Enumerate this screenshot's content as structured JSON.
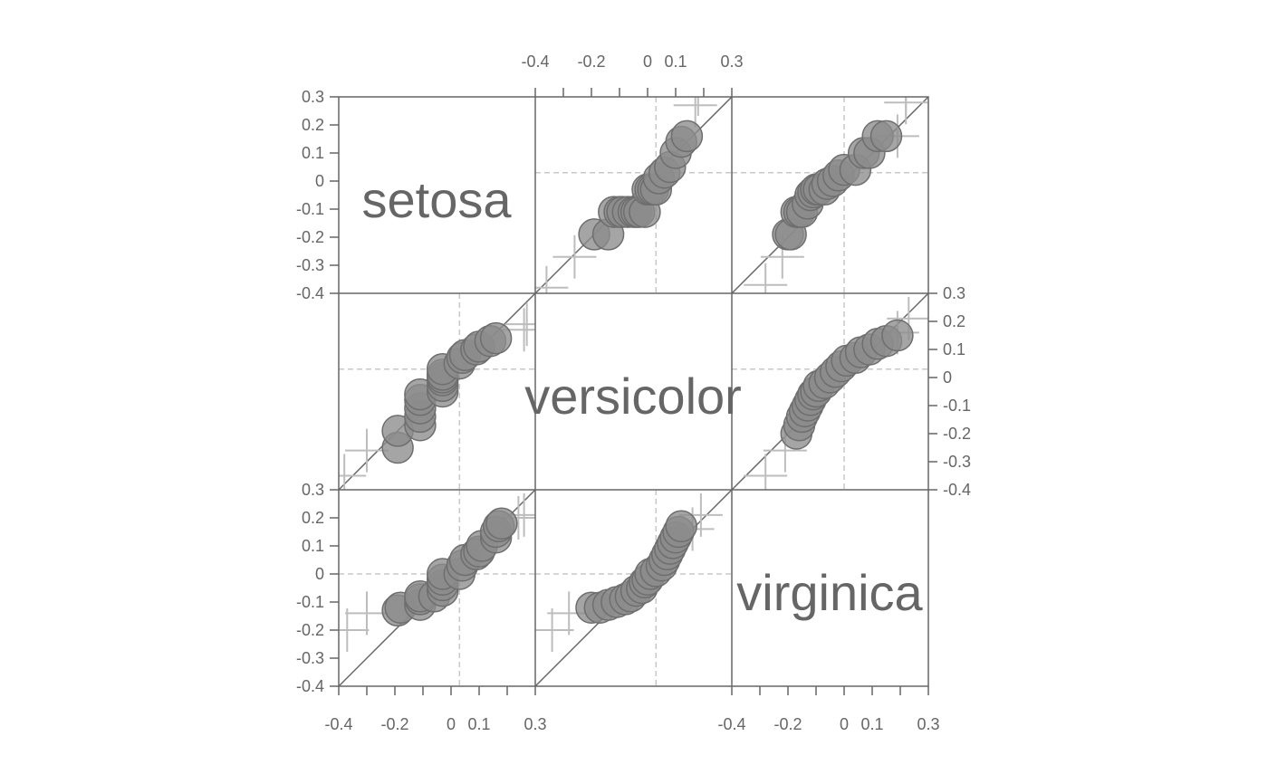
{
  "chart_data": {
    "type": "scatter",
    "subtype": "scatterplot-matrix-qq",
    "groups": [
      "setosa",
      "versicolor",
      "virginica"
    ],
    "axis": {
      "range": [
        -0.4,
        0.3
      ],
      "ticks": [
        -0.4,
        -0.3,
        -0.2,
        -0.1,
        0,
        0.1,
        0.2,
        0.3
      ],
      "tick_labels_vertical": [
        "0.3",
        "0.2",
        "0.1",
        "0",
        "-0.1",
        "-0.2",
        "-0.3",
        "-0.4"
      ],
      "tick_labels_horizontal": [
        {
          "value": -0.4,
          "text": "-0.4"
        },
        {
          "value": -0.2,
          "text": "-0.2"
        },
        {
          "value": 0,
          "text": "0"
        },
        {
          "value": 0.1,
          "text": "0.1"
        },
        {
          "value": 0.3,
          "text": "0.3"
        }
      ]
    },
    "reference_lines": {
      "identity": true,
      "dashed_vertical_by_column": [
        0.03,
        0.03,
        0.0
      ],
      "dashed_horizontal_by_row": [
        0.03,
        0.03,
        0.0
      ]
    },
    "panels": [
      {
        "row": 0,
        "col": 1,
        "points": [
          [
            -0.19,
            -0.19
          ],
          [
            -0.14,
            -0.19
          ],
          [
            -0.12,
            -0.11
          ],
          [
            -0.1,
            -0.11
          ],
          [
            -0.09,
            -0.11
          ],
          [
            -0.07,
            -0.11
          ],
          [
            -0.05,
            -0.11
          ],
          [
            -0.04,
            -0.11
          ],
          [
            -0.03,
            -0.11
          ],
          [
            -0.01,
            -0.11
          ],
          [
            0.0,
            -0.03
          ],
          [
            0.01,
            -0.03
          ],
          [
            0.02,
            -0.03
          ],
          [
            0.03,
            -0.03
          ],
          [
            0.04,
            0.01
          ],
          [
            0.06,
            0.03
          ],
          [
            0.08,
            0.05
          ],
          [
            0.1,
            0.1
          ],
          [
            0.12,
            0.14
          ],
          [
            0.14,
            0.16
          ]
        ],
        "crosses": [
          [
            -0.36,
            -0.38
          ],
          [
            -0.26,
            -0.27
          ],
          [
            0.17,
            0.27
          ],
          [
            0.18,
            0.31
          ]
        ]
      },
      {
        "row": 0,
        "col": 2,
        "points": [
          [
            -0.2,
            -0.19
          ],
          [
            -0.19,
            -0.19
          ],
          [
            -0.17,
            -0.11
          ],
          [
            -0.16,
            -0.11
          ],
          [
            -0.15,
            -0.11
          ],
          [
            -0.13,
            -0.08
          ],
          [
            -0.12,
            -0.05
          ],
          [
            -0.11,
            -0.04
          ],
          [
            -0.1,
            -0.03
          ],
          [
            -0.09,
            -0.03
          ],
          [
            -0.07,
            -0.03
          ],
          [
            -0.06,
            -0.01
          ],
          [
            -0.04,
            0.0
          ],
          [
            -0.02,
            0.02
          ],
          [
            0.0,
            0.04
          ],
          [
            0.04,
            0.04
          ],
          [
            0.07,
            0.1
          ],
          [
            0.09,
            0.1
          ],
          [
            0.12,
            0.16
          ],
          [
            0.15,
            0.16
          ]
        ],
        "crosses": [
          [
            -0.28,
            -0.37
          ],
          [
            -0.22,
            -0.27
          ],
          [
            0.19,
            0.16
          ],
          [
            0.22,
            0.28
          ],
          [
            0.22,
            0.31
          ]
        ]
      },
      {
        "row": 1,
        "col": 0,
        "points": [
          [
            -0.19,
            -0.25
          ],
          [
            -0.19,
            -0.19
          ],
          [
            -0.11,
            -0.17
          ],
          [
            -0.11,
            -0.14
          ],
          [
            -0.11,
            -0.11
          ],
          [
            -0.11,
            -0.08
          ],
          [
            -0.11,
            -0.06
          ],
          [
            -0.03,
            -0.05
          ],
          [
            -0.03,
            -0.03
          ],
          [
            -0.03,
            -0.01
          ],
          [
            -0.03,
            0.0
          ],
          [
            -0.03,
            0.01
          ],
          [
            -0.03,
            0.03
          ],
          [
            0.03,
            0.05
          ],
          [
            0.04,
            0.07
          ],
          [
            0.05,
            0.08
          ],
          [
            0.09,
            0.1
          ],
          [
            0.1,
            0.11
          ],
          [
            0.14,
            0.13
          ],
          [
            0.16,
            0.14
          ]
        ],
        "crosses": [
          [
            -0.38,
            -0.35
          ],
          [
            -0.3,
            -0.26
          ],
          [
            0.26,
            0.17
          ],
          [
            0.27,
            0.19
          ]
        ]
      },
      {
        "row": 1,
        "col": 2,
        "points": [
          [
            -0.17,
            -0.2
          ],
          [
            -0.16,
            -0.17
          ],
          [
            -0.15,
            -0.14
          ],
          [
            -0.14,
            -0.12
          ],
          [
            -0.13,
            -0.1
          ],
          [
            -0.12,
            -0.08
          ],
          [
            -0.11,
            -0.06
          ],
          [
            -0.1,
            -0.05
          ],
          [
            -0.09,
            -0.03
          ],
          [
            -0.07,
            -0.02
          ],
          [
            -0.05,
            0.0
          ],
          [
            -0.03,
            0.02
          ],
          [
            -0.01,
            0.04
          ],
          [
            0.01,
            0.06
          ],
          [
            0.04,
            0.07
          ],
          [
            0.06,
            0.09
          ],
          [
            0.09,
            0.1
          ],
          [
            0.12,
            0.12
          ],
          [
            0.15,
            0.13
          ],
          [
            0.19,
            0.15
          ]
        ],
        "crosses": [
          [
            -0.28,
            -0.35
          ],
          [
            -0.21,
            -0.26
          ],
          [
            0.19,
            0.16
          ],
          [
            0.23,
            0.21
          ]
        ]
      },
      {
        "row": 2,
        "col": 0,
        "points": [
          [
            -0.19,
            -0.13
          ],
          [
            -0.18,
            -0.12
          ],
          [
            -0.11,
            -0.11
          ],
          [
            -0.11,
            -0.09
          ],
          [
            -0.11,
            -0.08
          ],
          [
            -0.06,
            -0.08
          ],
          [
            -0.03,
            -0.06
          ],
          [
            -0.03,
            -0.04
          ],
          [
            -0.03,
            -0.02
          ],
          [
            -0.03,
            0.0
          ],
          [
            0.03,
            0.0
          ],
          [
            0.04,
            0.03
          ],
          [
            0.05,
            0.05
          ],
          [
            0.09,
            0.07
          ],
          [
            0.1,
            0.08
          ],
          [
            0.11,
            0.1
          ],
          [
            0.16,
            0.13
          ],
          [
            0.16,
            0.15
          ],
          [
            0.17,
            0.17
          ],
          [
            0.18,
            0.18
          ]
        ],
        "crosses": [
          [
            -0.37,
            -0.2
          ],
          [
            -0.3,
            -0.14
          ],
          [
            0.24,
            0.2
          ],
          [
            0.26,
            0.21
          ]
        ]
      },
      {
        "row": 2,
        "col": 1,
        "points": [
          [
            -0.2,
            -0.12
          ],
          [
            -0.17,
            -0.12
          ],
          [
            -0.14,
            -0.11
          ],
          [
            -0.11,
            -0.1
          ],
          [
            -0.08,
            -0.09
          ],
          [
            -0.06,
            -0.08
          ],
          [
            -0.04,
            -0.06
          ],
          [
            -0.02,
            -0.05
          ],
          [
            -0.01,
            -0.03
          ],
          [
            0.0,
            -0.02
          ],
          [
            0.01,
            0.0
          ],
          [
            0.03,
            0.01
          ],
          [
            0.05,
            0.03
          ],
          [
            0.06,
            0.05
          ],
          [
            0.07,
            0.07
          ],
          [
            0.08,
            0.09
          ],
          [
            0.09,
            0.11
          ],
          [
            0.1,
            0.13
          ],
          [
            0.11,
            0.15
          ],
          [
            0.12,
            0.17
          ]
        ],
        "crosses": [
          [
            -0.34,
            -0.2
          ],
          [
            -0.28,
            -0.14
          ],
          [
            0.16,
            0.16
          ],
          [
            0.19,
            0.21
          ]
        ]
      }
    ]
  }
}
